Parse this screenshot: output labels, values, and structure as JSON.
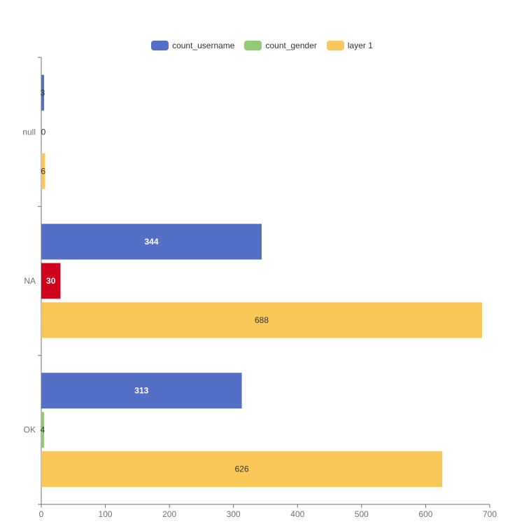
{
  "chart_data": {
    "type": "bar",
    "orientation": "horizontal",
    "categories": [
      "OK",
      "NA",
      "null"
    ],
    "series": [
      {
        "name": "count_username",
        "values": [
          313,
          344,
          3
        ],
        "color": "#5470c6",
        "label_color": "#ffffff"
      },
      {
        "name": "count_gender",
        "values": [
          4,
          30,
          0
        ],
        "color": "#91cc75",
        "label_color": "#333333"
      },
      {
        "name": "layer 1",
        "values": [
          626,
          688,
          6
        ],
        "color": "#fac858",
        "label_color": "#333333"
      }
    ],
    "highlight": {
      "category": "NA",
      "series": "count_gender",
      "color": "#d0021b",
      "label_color": "#ffffff"
    },
    "xlim": [
      0,
      700
    ],
    "xticks": [
      0,
      100,
      200,
      300,
      400,
      500,
      600,
      700
    ],
    "legend_position": "top-center",
    "grid": false
  }
}
